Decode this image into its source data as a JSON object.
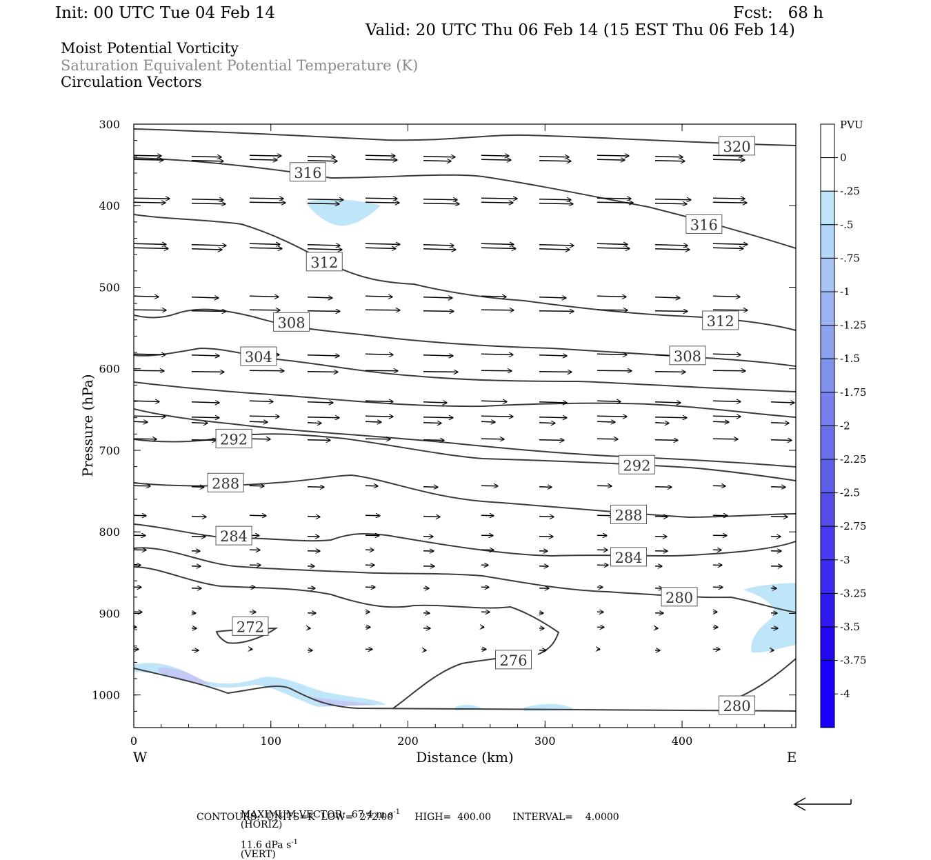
{
  "header": {
    "init": "Init: 00 UTC Tue 04 Feb 14",
    "fcst": "Fcst:   68 h",
    "valid": "Valid: 20 UTC Thu 06 Feb 14 (15 EST Thu 06 Feb 14)",
    "field1": "Moist Potential Vorticity",
    "field2": "Saturation Equivalent Potential Temperature (K)",
    "field3": "Circulation Vectors"
  },
  "footer": {
    "max_vector": "MAXIMUM VECTOR:  67.4 m s",
    "horiz": "(HORIZ)",
    "vert_val": "11.6 dPa s",
    "vert": "(VERT)",
    "exp": "-1",
    "contours": "CONTOURS:  UNITS=K  LOW=  272.00       HIGH=  400.00       INTERVAL=    4.0000"
  },
  "colors": {
    "contour": "#3a3a3a",
    "pv_light": "#bfe6f8",
    "pv_lavender": "#c4c8f5",
    "vector": "#000000"
  },
  "chart_data": {
    "type": "cross-section",
    "xlabel": "Distance (km)",
    "ylabel": "Pressure (hPa)",
    "x_ticks": [
      0,
      100,
      200,
      300,
      400
    ],
    "y_ticks": [
      300,
      400,
      500,
      600,
      700,
      800,
      900,
      1000
    ],
    "xlim": [
      0,
      483
    ],
    "ylim": [
      1040,
      300
    ],
    "x_end_labels": {
      "left": "W",
      "right": "E"
    },
    "legend": {
      "title": "PVU",
      "labels": [
        "0",
        "-.25",
        "-.5",
        "-.75",
        "-1",
        "-1.25",
        "-1.5",
        "-1.75",
        "-2",
        "-2.25",
        "-2.5",
        "-2.75",
        "-3",
        "-3.25",
        "-3.5",
        "-3.75",
        "-4"
      ],
      "colors": [
        "#ffffff",
        "#ffffff",
        "#bfe6f8",
        "#b3d5f6",
        "#a7c4f4",
        "#9bb3f2",
        "#8fa2f0",
        "#8391ee",
        "#7780ec",
        "#6b6fea",
        "#5f5ee8",
        "#534de6",
        "#473cf4",
        "#3b2bf2",
        "#2f1af0",
        "#2309ee",
        "#1700ff"
      ]
    },
    "contour_labels": [
      {
        "text": "320",
        "x": 440,
        "p": 327
      },
      {
        "text": "316",
        "x": 127,
        "p": 359
      },
      {
        "text": "316",
        "x": 416,
        "p": 423
      },
      {
        "text": "312",
        "x": 139,
        "p": 469
      },
      {
        "text": "312",
        "x": 428,
        "p": 541
      },
      {
        "text": "308",
        "x": 115,
        "p": 543
      },
      {
        "text": "308",
        "x": 404,
        "p": 584
      },
      {
        "text": "304",
        "x": 91,
        "p": 585
      },
      {
        "text": "292",
        "x": 73,
        "p": 686
      },
      {
        "text": "292",
        "x": 367,
        "p": 718
      },
      {
        "text": "288",
        "x": 67,
        "p": 740
      },
      {
        "text": "288",
        "x": 361,
        "p": 779
      },
      {
        "text": "284",
        "x": 73,
        "p": 805
      },
      {
        "text": "284",
        "x": 361,
        "p": 831
      },
      {
        "text": "280",
        "x": 398,
        "p": 880
      },
      {
        "text": "280",
        "x": 440,
        "p": 1013
      },
      {
        "text": "276",
        "x": 277,
        "p": 957
      },
      {
        "text": "272",
        "x": 85,
        "p": 916
      }
    ]
  }
}
